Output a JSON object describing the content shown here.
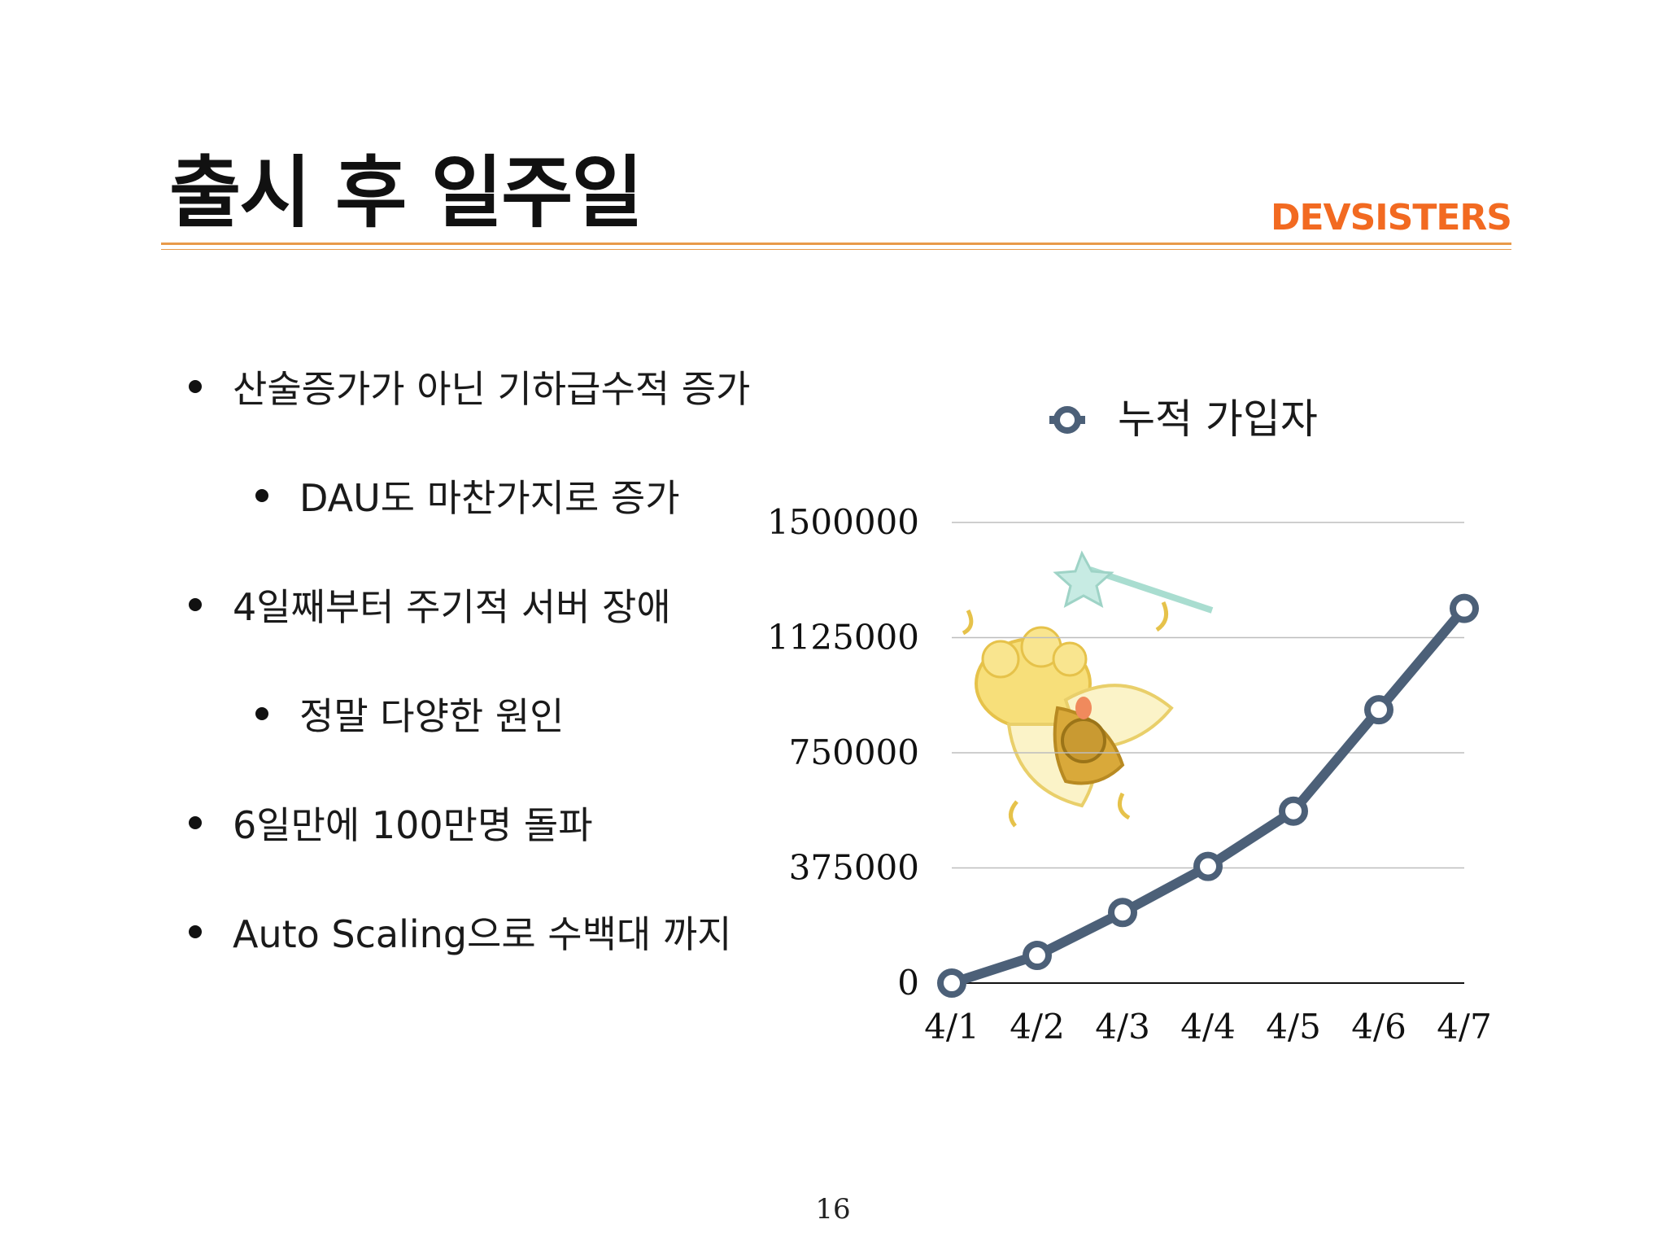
{
  "slide": {
    "title": "출시 후 일주일",
    "logo": "DEVSISTERS",
    "page_number": "16",
    "bullets": [
      {
        "text": "산술증가가 아닌 기하급수적 증가",
        "level": 1
      },
      {
        "text": "DAU도 마찬가지로 증가",
        "level": 2
      },
      {
        "text": "4일째부터 주기적 서버 장애",
        "level": 1
      },
      {
        "text": "정말 다양한 원인",
        "level": 2
      },
      {
        "text": "6일만에 100만명 돌파",
        "level": 1
      },
      {
        "text": "Auto Scaling으로 수백대 까지",
        "level": 1
      }
    ],
    "accent_color": "#f26a21",
    "rule_color": "#e89a4a"
  },
  "chart_data": {
    "type": "line",
    "categories": [
      "4/1",
      "4/2",
      "4/3",
      "4/4",
      "4/5",
      "4/6",
      "4/7"
    ],
    "series": [
      {
        "name": "누적 가입자",
        "values": [
          0,
          90000,
          230000,
          380000,
          560000,
          890000,
          1220000
        ],
        "color": "#4c6078"
      }
    ],
    "ylim": [
      0,
      1500000
    ],
    "yticks": [
      "0",
      "375000",
      "750000",
      "1125000",
      "1500000"
    ],
    "xlabel": "",
    "ylabel": "",
    "grid": true,
    "legend": "top"
  }
}
